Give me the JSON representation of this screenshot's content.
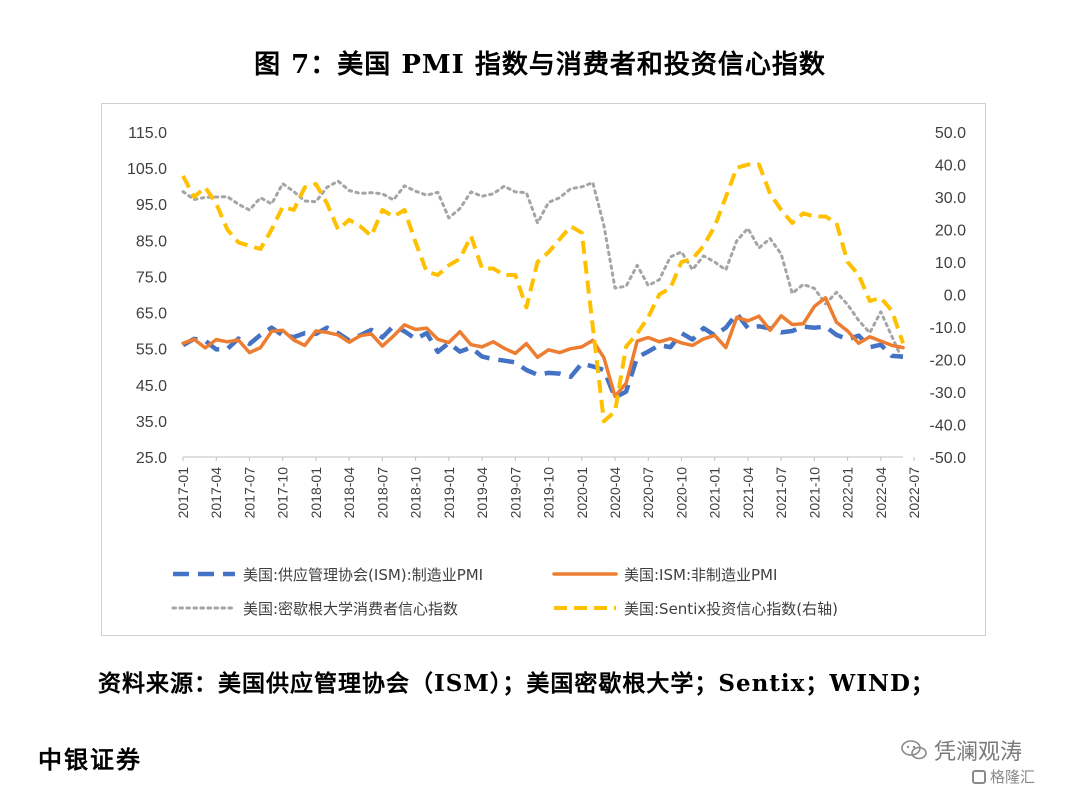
{
  "title": "图 7：美国 PMI 指数与消费者和投资信心指数",
  "source": "资料来源：美国供应管理协会（ISM）；美国密歇根大学；Sentix；WIND；",
  "org": "中银证券",
  "watermark": {
    "main": "凭澜观涛",
    "sub": "格隆汇",
    "main_icon": "wechat-icon",
    "sub_icon": "gelonghui-logo-icon"
  },
  "chart_data": {
    "type": "line",
    "left_axis": {
      "min": 25,
      "max": 115,
      "ticks": [
        "115.0",
        "105.0",
        "95.0",
        "85.0",
        "75.0",
        "65.0",
        "55.0",
        "45.0",
        "35.0",
        "25.0"
      ]
    },
    "right_axis": {
      "min": -50,
      "max": 50,
      "ticks": [
        "50.0",
        "40.0",
        "30.0",
        "20.0",
        "10.0",
        "0.0",
        "-10.0",
        "-20.0",
        "-30.0",
        "-40.0",
        "-50.0"
      ]
    },
    "x_labels": [
      "2017-01",
      "2017-04",
      "2017-07",
      "2017-10",
      "2018-01",
      "2018-04",
      "2018-07",
      "2018-10",
      "2019-01",
      "2019-04",
      "2019-07",
      "2019-10",
      "2020-01",
      "2020-04",
      "2020-07",
      "2020-10",
      "2021-01",
      "2021-04",
      "2021-07",
      "2021-10",
      "2022-01",
      "2022-04",
      "2022-07"
    ],
    "grid": false,
    "legend_position": "bottom",
    "series": [
      {
        "name": "美国:供应管理协会(ISM):制造业PMI",
        "axis": "left",
        "style": "dashed-long",
        "color": "#4472C4",
        "values": [
          56.0,
          57.7,
          57.2,
          54.8,
          54.9,
          57.8,
          56.3,
          58.8,
          60.8,
          58.7,
          58.2,
          59.3,
          59.1,
          60.8,
          59.3,
          57.3,
          58.7,
          60.2,
          58.1,
          61.3,
          59.8,
          57.7,
          59.3,
          54.1,
          56.6,
          54.2,
          55.3,
          52.8,
          52.1,
          51.7,
          51.2,
          49.1,
          47.8,
          48.3,
          48.1,
          47.2,
          50.9,
          50.1,
          49.1,
          41.5,
          43.1,
          52.6,
          54.2,
          56.0,
          55.4,
          59.3,
          57.5,
          60.7,
          58.7,
          60.8,
          64.7,
          60.7,
          61.2,
          60.6,
          59.5,
          59.9,
          61.1,
          60.8,
          61.1,
          58.8,
          57.6,
          58.6,
          55.4,
          56.1,
          53.0,
          52.8
        ]
      },
      {
        "name": "美国:ISM:非制造业PMI",
        "axis": "left",
        "style": "solid",
        "color": "#ED7D31",
        "values": [
          56.5,
          57.6,
          55.2,
          57.5,
          56.9,
          57.4,
          53.9,
          55.3,
          59.8,
          60.1,
          57.4,
          55.9,
          59.9,
          59.5,
          58.8,
          56.8,
          58.6,
          59.1,
          55.7,
          58.5,
          61.6,
          60.3,
          60.7,
          57.6,
          56.7,
          59.7,
          56.1,
          55.5,
          56.9,
          55.1,
          53.7,
          56.4,
          52.6,
          54.7,
          53.9,
          55.0,
          55.5,
          57.3,
          52.5,
          41.8,
          45.4,
          57.1,
          58.1,
          56.9,
          57.8,
          56.6,
          55.9,
          57.7,
          58.7,
          55.3,
          63.7,
          62.7,
          64.0,
          60.1,
          64.1,
          61.7,
          61.9,
          66.7,
          69.1,
          62.3,
          59.9,
          56.5,
          58.3,
          57.1,
          55.9,
          55.3
        ]
      },
      {
        "name": "美国:密歇根大学消费者信心指数",
        "axis": "left",
        "style": "dotted",
        "color": "#A5A5A5",
        "values": [
          98.5,
          96.3,
          96.9,
          97.0,
          97.1,
          95.0,
          93.4,
          96.8,
          95.1,
          100.7,
          98.5,
          95.9,
          95.7,
          99.7,
          101.4,
          98.8,
          98.0,
          98.2,
          97.9,
          96.2,
          100.1,
          98.6,
          97.5,
          98.3,
          91.2,
          93.8,
          98.4,
          97.2,
          97.9,
          100.0,
          98.4,
          98.2,
          89.8,
          95.5,
          96.8,
          99.3,
          99.8,
          101.0,
          89.1,
          71.8,
          72.3,
          78.1,
          72.5,
          74.1,
          80.4,
          81.8,
          76.9,
          80.7,
          79.0,
          76.8,
          84.9,
          88.3,
          82.9,
          85.5,
          81.2,
          70.3,
          72.8,
          71.7,
          67.4,
          70.6,
          67.2,
          62.8,
          59.4,
          65.2,
          58.4,
          51.5
        ]
      },
      {
        "name": "美国:Sentix投资信心指数(右轴)",
        "axis": "right",
        "style": "dashed-yellow",
        "color": "#FFC000",
        "values": [
          36.5,
          30.0,
          33.0,
          28.0,
          20.0,
          16.0,
          15.0,
          14.0,
          20.0,
          27.0,
          26.0,
          33.0,
          34.0,
          28.0,
          20.0,
          23.0,
          21.0,
          18.0,
          26.0,
          24.0,
          26.0,
          16.0,
          7.0,
          6.0,
          9.0,
          11.0,
          18.0,
          8.0,
          8.0,
          6.0,
          6.0,
          -4.0,
          10.0,
          13.0,
          17.0,
          21.0,
          19.0,
          -10.0,
          -39.0,
          -36.0,
          -16.0,
          -12.0,
          -7.0,
          0.0,
          2.0,
          10.0,
          11.0,
          15.0,
          21.0,
          30.0,
          39.0,
          40.0,
          40.0,
          31.0,
          26.0,
          22.0,
          25.0,
          24.0,
          24.0,
          22.0,
          10.0,
          6.0,
          -2.0,
          -1.0,
          -5.0,
          -15.0
        ]
      }
    ]
  }
}
